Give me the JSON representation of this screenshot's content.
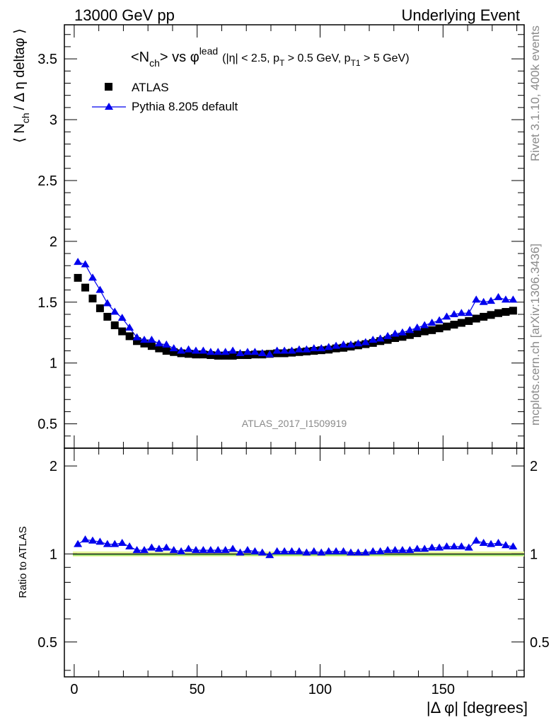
{
  "header": {
    "left": "13000 GeV pp",
    "right": "Underlying Event"
  },
  "side_labels": {
    "rivet": "Rivet 3.1.10,  400k events",
    "mcplots": "mcplots.cern.ch [arXiv:1306.3436]"
  },
  "watermark": "ATLAS_2017_I1509919",
  "chart_data": [
    {
      "type": "scatter",
      "title_parts": {
        "n": "<N",
        "ch": "ch",
        "vs": "> vs ",
        "phi": "φ",
        "lead": "lead",
        "cuts_a": "(|η| < 2.5, p",
        "T": "T",
        "cuts_b": " > 0.5 GeV, p",
        "T1": "T1",
        "cuts_c": " > 5 GeV)"
      },
      "ylabel_parts": {
        "open": "⟨ N",
        "ch": "ch",
        "rest": "/ Δ η deltaφ ⟩"
      },
      "ylim": [
        0.3,
        3.78
      ],
      "xlim": [
        -4,
        183
      ],
      "yticks": [
        "0.5",
        "1",
        "1.5",
        "2",
        "2.5",
        "3",
        "3.5"
      ],
      "legend": [
        {
          "name": "ATLAS",
          "marker": "square",
          "color": "#000000"
        },
        {
          "name": "Pythia 8.205 default",
          "marker": "triangle",
          "color": "#0000ee"
        }
      ],
      "x": [
        1.5,
        4.5,
        7.5,
        10.5,
        13.5,
        16.5,
        19.5,
        22.5,
        25.5,
        28.5,
        31.5,
        34.5,
        37.5,
        40.5,
        43.5,
        46.5,
        49.5,
        52.5,
        55.5,
        58.5,
        61.5,
        64.5,
        67.5,
        70.5,
        73.5,
        76.5,
        79.5,
        82.5,
        85.5,
        88.5,
        91.5,
        94.5,
        97.5,
        100.5,
        103.5,
        106.5,
        109.5,
        112.5,
        115.5,
        118.5,
        121.5,
        124.5,
        127.5,
        130.5,
        133.5,
        136.5,
        139.5,
        142.5,
        145.5,
        148.5,
        151.5,
        154.5,
        157.5,
        160.5,
        163.5,
        166.5,
        169.5,
        172.5,
        175.5,
        178.5
      ],
      "series": [
        {
          "name": "ATLAS",
          "values": [
            1.7,
            1.62,
            1.53,
            1.45,
            1.38,
            1.31,
            1.26,
            1.22,
            1.18,
            1.16,
            1.14,
            1.12,
            1.1,
            1.09,
            1.08,
            1.075,
            1.07,
            1.07,
            1.065,
            1.06,
            1.06,
            1.06,
            1.065,
            1.065,
            1.07,
            1.07,
            1.075,
            1.08,
            1.08,
            1.085,
            1.09,
            1.095,
            1.1,
            1.105,
            1.11,
            1.12,
            1.125,
            1.135,
            1.145,
            1.155,
            1.165,
            1.18,
            1.19,
            1.205,
            1.215,
            1.23,
            1.245,
            1.26,
            1.27,
            1.285,
            1.3,
            1.315,
            1.33,
            1.345,
            1.365,
            1.38,
            1.395,
            1.41,
            1.42,
            1.43
          ]
        },
        {
          "name": "Pythia 8.205 default",
          "values": [
            1.83,
            1.81,
            1.7,
            1.6,
            1.49,
            1.42,
            1.37,
            1.29,
            1.21,
            1.19,
            1.19,
            1.16,
            1.15,
            1.12,
            1.1,
            1.11,
            1.1,
            1.1,
            1.09,
            1.09,
            1.09,
            1.1,
            1.08,
            1.09,
            1.09,
            1.08,
            1.07,
            1.1,
            1.1,
            1.1,
            1.11,
            1.11,
            1.12,
            1.12,
            1.13,
            1.14,
            1.15,
            1.15,
            1.16,
            1.17,
            1.19,
            1.2,
            1.22,
            1.24,
            1.25,
            1.27,
            1.29,
            1.31,
            1.33,
            1.35,
            1.38,
            1.4,
            1.41,
            1.41,
            1.52,
            1.5,
            1.51,
            1.54,
            1.52,
            1.52
          ]
        }
      ]
    },
    {
      "type": "scatter",
      "ylabel": "Ratio to ATLAS",
      "xlabel_parts": {
        "a": "|Δ φ|",
        "b": " [degrees]"
      },
      "ylim": [
        0.38,
        2.3
      ],
      "xlim": [
        -4,
        183
      ],
      "yticks": [
        "0.5",
        "1",
        "2"
      ],
      "xticks": [
        "0",
        "50",
        "100",
        "150"
      ],
      "reference": 1.0,
      "x": [
        1.5,
        4.5,
        7.5,
        10.5,
        13.5,
        16.5,
        19.5,
        22.5,
        25.5,
        28.5,
        31.5,
        34.5,
        37.5,
        40.5,
        43.5,
        46.5,
        49.5,
        52.5,
        55.5,
        58.5,
        61.5,
        64.5,
        67.5,
        70.5,
        73.5,
        76.5,
        79.5,
        82.5,
        85.5,
        88.5,
        91.5,
        94.5,
        97.5,
        100.5,
        103.5,
        106.5,
        109.5,
        112.5,
        115.5,
        118.5,
        121.5,
        124.5,
        127.5,
        130.5,
        133.5,
        136.5,
        139.5,
        142.5,
        145.5,
        148.5,
        151.5,
        154.5,
        157.5,
        160.5,
        163.5,
        166.5,
        169.5,
        172.5,
        175.5,
        178.5
      ],
      "series": [
        {
          "name": "Pythia 8.205 default / ATLAS",
          "values": [
            1.08,
            1.12,
            1.11,
            1.1,
            1.08,
            1.08,
            1.09,
            1.06,
            1.03,
            1.03,
            1.05,
            1.04,
            1.05,
            1.03,
            1.02,
            1.04,
            1.03,
            1.03,
            1.03,
            1.03,
            1.03,
            1.04,
            1.01,
            1.03,
            1.02,
            1.01,
            0.99,
            1.02,
            1.02,
            1.02,
            1.02,
            1.01,
            1.02,
            1.01,
            1.02,
            1.02,
            1.02,
            1.01,
            1.01,
            1.01,
            1.02,
            1.02,
            1.03,
            1.03,
            1.03,
            1.03,
            1.04,
            1.04,
            1.05,
            1.05,
            1.06,
            1.06,
            1.06,
            1.05,
            1.11,
            1.09,
            1.08,
            1.09,
            1.07,
            1.06
          ]
        }
      ]
    }
  ]
}
